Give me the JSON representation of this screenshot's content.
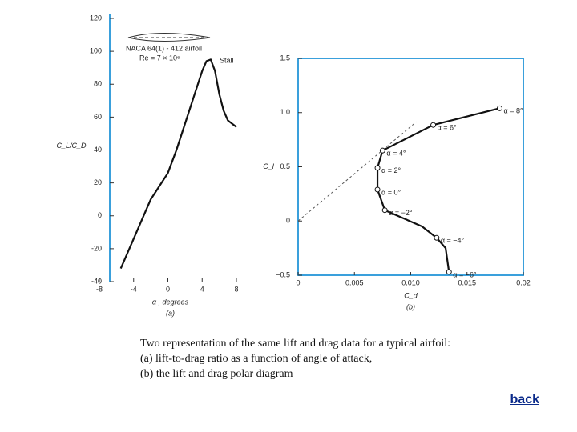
{
  "chart_data": [
    {
      "type": "line",
      "title": "NACA 64(1) - 412 airfoil",
      "subtitle": "Re = 7 × 10⁶",
      "annotation": "Stall",
      "x_label": "α , degrees",
      "y_label": "C_L/C_D",
      "panel": "(a)",
      "x": [
        -5.5,
        -4,
        -3,
        -2,
        -1,
        0,
        1,
        2,
        3,
        4,
        4.5,
        5,
        5.5,
        6,
        6.5,
        7,
        8
      ],
      "series": [
        {
          "name": "L/D",
          "color": "#111111",
          "values": [
            -32,
            -14,
            -2,
            10,
            18,
            26,
            40,
            56,
            72,
            88,
            94,
            95,
            88,
            74,
            64,
            58,
            54
          ]
        }
      ],
      "xlim": [
        -8,
        8
      ],
      "xticks": [
        -8,
        -4,
        0,
        4,
        8
      ],
      "ylim": [
        -40,
        120
      ],
      "yticks": [
        -40,
        -20,
        0,
        20,
        40,
        60,
        80,
        100,
        120
      ]
    },
    {
      "type": "line",
      "x_label": "C_d",
      "y_label": "C_l",
      "panel": "(b)",
      "x": [
        0.0134,
        0.0131,
        0.0123,
        0.011,
        0.0077,
        0.00705,
        0.00705,
        0.0075,
        0.012,
        0.0179
      ],
      "series": [
        {
          "name": "polar",
          "color": "#111111",
          "values": [
            -0.47,
            -0.25,
            -0.155,
            -0.05,
            0.1,
            0.29,
            0.49,
            0.65,
            0.886,
            1.04
          ]
        }
      ],
      "tangent": {
        "x": [
          0,
          0.0105
        ],
        "y": [
          0,
          0.915
        ]
      },
      "points": [
        {
          "x": 0.0179,
          "y": 1.04,
          "label": "α = 8°"
        },
        {
          "x": 0.012,
          "y": 0.886,
          "label": "α = 6°"
        },
        {
          "x": 0.0075,
          "y": 0.65,
          "label": "α = 4°"
        },
        {
          "x": 0.00705,
          "y": 0.49,
          "label": "α = 2°"
        },
        {
          "x": 0.00705,
          "y": 0.29,
          "label": "α = 0°"
        },
        {
          "x": 0.0077,
          "y": 0.1,
          "label": "α = −2°"
        },
        {
          "x": 0.0123,
          "y": -0.155,
          "label": "α = −4°"
        },
        {
          "x": 0.0134,
          "y": -0.47,
          "label": "α = −6°"
        }
      ],
      "xlim": [
        0,
        0.02
      ],
      "xticks": [
        0,
        0.005,
        {
          "value": 0.01,
          "label": "0.010"
        },
        0.015,
        0.02
      ],
      "ylim": [
        -0.5,
        1.5
      ],
      "yticks": [
        {
          "value": -0.5,
          "label": "−0.5"
        },
        0,
        0.5,
        {
          "value": 1,
          "label": "1.0"
        },
        1.5
      ]
    }
  ],
  "caption": [
    "Two representation of the same lift and drag data for a typical airfoil:",
    "(a) lift-to-drag ratio as a function of angle of attack,",
    "(b) the lift and drag polar diagram"
  ],
  "link": "back"
}
